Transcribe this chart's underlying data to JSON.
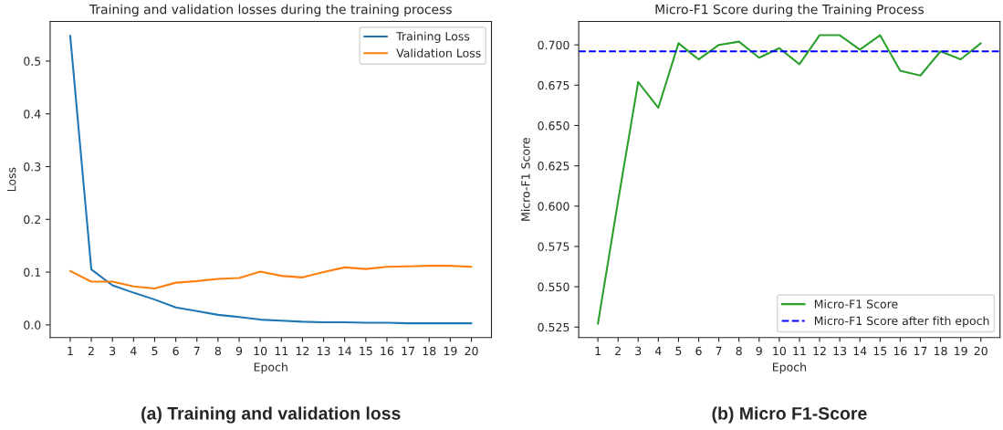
{
  "chart_data": [
    {
      "type": "line",
      "title": "Training and validation losses during the training process",
      "xlabel": "Epoch",
      "ylabel": "Loss",
      "x": [
        1,
        2,
        3,
        4,
        5,
        6,
        7,
        8,
        9,
        10,
        11,
        12,
        13,
        14,
        15,
        16,
        17,
        18,
        19,
        20
      ],
      "series": [
        {
          "name": "Training Loss",
          "color": "#1f77b4",
          "values": [
            0.548,
            0.105,
            0.075,
            0.061,
            0.048,
            0.033,
            0.026,
            0.019,
            0.015,
            0.01,
            0.008,
            0.006,
            0.005,
            0.005,
            0.004,
            0.004,
            0.003,
            0.003,
            0.003,
            0.003
          ]
        },
        {
          "name": "Validation Loss",
          "color": "#ff7f0e",
          "values": [
            0.102,
            0.082,
            0.082,
            0.073,
            0.069,
            0.08,
            0.083,
            0.087,
            0.089,
            0.101,
            0.093,
            0.09,
            0.1,
            0.109,
            0.106,
            0.11,
            0.111,
            0.112,
            0.112,
            0.11
          ]
        }
      ],
      "xlim": [
        0.05,
        20.95
      ],
      "xticks": [
        1,
        2,
        3,
        4,
        5,
        6,
        7,
        8,
        9,
        10,
        11,
        12,
        13,
        14,
        15,
        16,
        17,
        18,
        19,
        20
      ],
      "ylim": [
        -0.024,
        0.575
      ],
      "yticks": [
        {
          "value": 0,
          "label": "0.0"
        },
        0.1,
        0.2,
        0.3,
        0.4,
        0.5
      ],
      "legend": "top right",
      "grid": false,
      "annotations": [
        "(a) Training and validation loss"
      ]
    },
    {
      "type": "line",
      "title": "Micro-F1 Score during the Training Process",
      "xlabel": "Epoch",
      "ylabel": "Micro-F1 Score",
      "x": [
        1,
        2,
        3,
        4,
        5,
        6,
        7,
        8,
        9,
        10,
        11,
        12,
        13,
        14,
        15,
        16,
        17,
        18,
        19,
        20
      ],
      "series": [
        {
          "name": "Micro-F1 Score",
          "color": "#2ca02c",
          "values": [
            0.527,
            0.603,
            0.677,
            0.661,
            0.701,
            0.691,
            0.7,
            0.702,
            0.692,
            0.698,
            0.688,
            0.706,
            0.706,
            0.697,
            0.706,
            0.684,
            0.681,
            0.696,
            0.691,
            0.701
          ]
        }
      ],
      "ref_lines": [
        {
          "axis": "y",
          "value": 0.696,
          "label": "Micro-F1 Score after fith epoch",
          "color": "#0000ff",
          "line_style": "dashed"
        }
      ],
      "xlim": [
        0.05,
        20.95
      ],
      "xticks": [
        1,
        2,
        3,
        4,
        5,
        6,
        7,
        8,
        9,
        10,
        11,
        12,
        13,
        14,
        15,
        16,
        17,
        18,
        19,
        20
      ],
      "ylim": [
        0.5185,
        0.7145
      ],
      "yticks": [
        {
          "value": 0.525,
          "label": "0.525"
        },
        {
          "value": 0.55,
          "label": "0.550"
        },
        {
          "value": 0.575,
          "label": "0.575"
        },
        {
          "value": 0.6,
          "label": "0.600"
        },
        {
          "value": 0.625,
          "label": "0.625"
        },
        {
          "value": 0.65,
          "label": "0.650"
        },
        {
          "value": 0.675,
          "label": "0.675"
        },
        {
          "value": 0.7,
          "label": "0.700"
        }
      ],
      "legend": "bottom right",
      "grid": false,
      "annotations": [
        "(b) Micro F1-Score"
      ]
    }
  ]
}
